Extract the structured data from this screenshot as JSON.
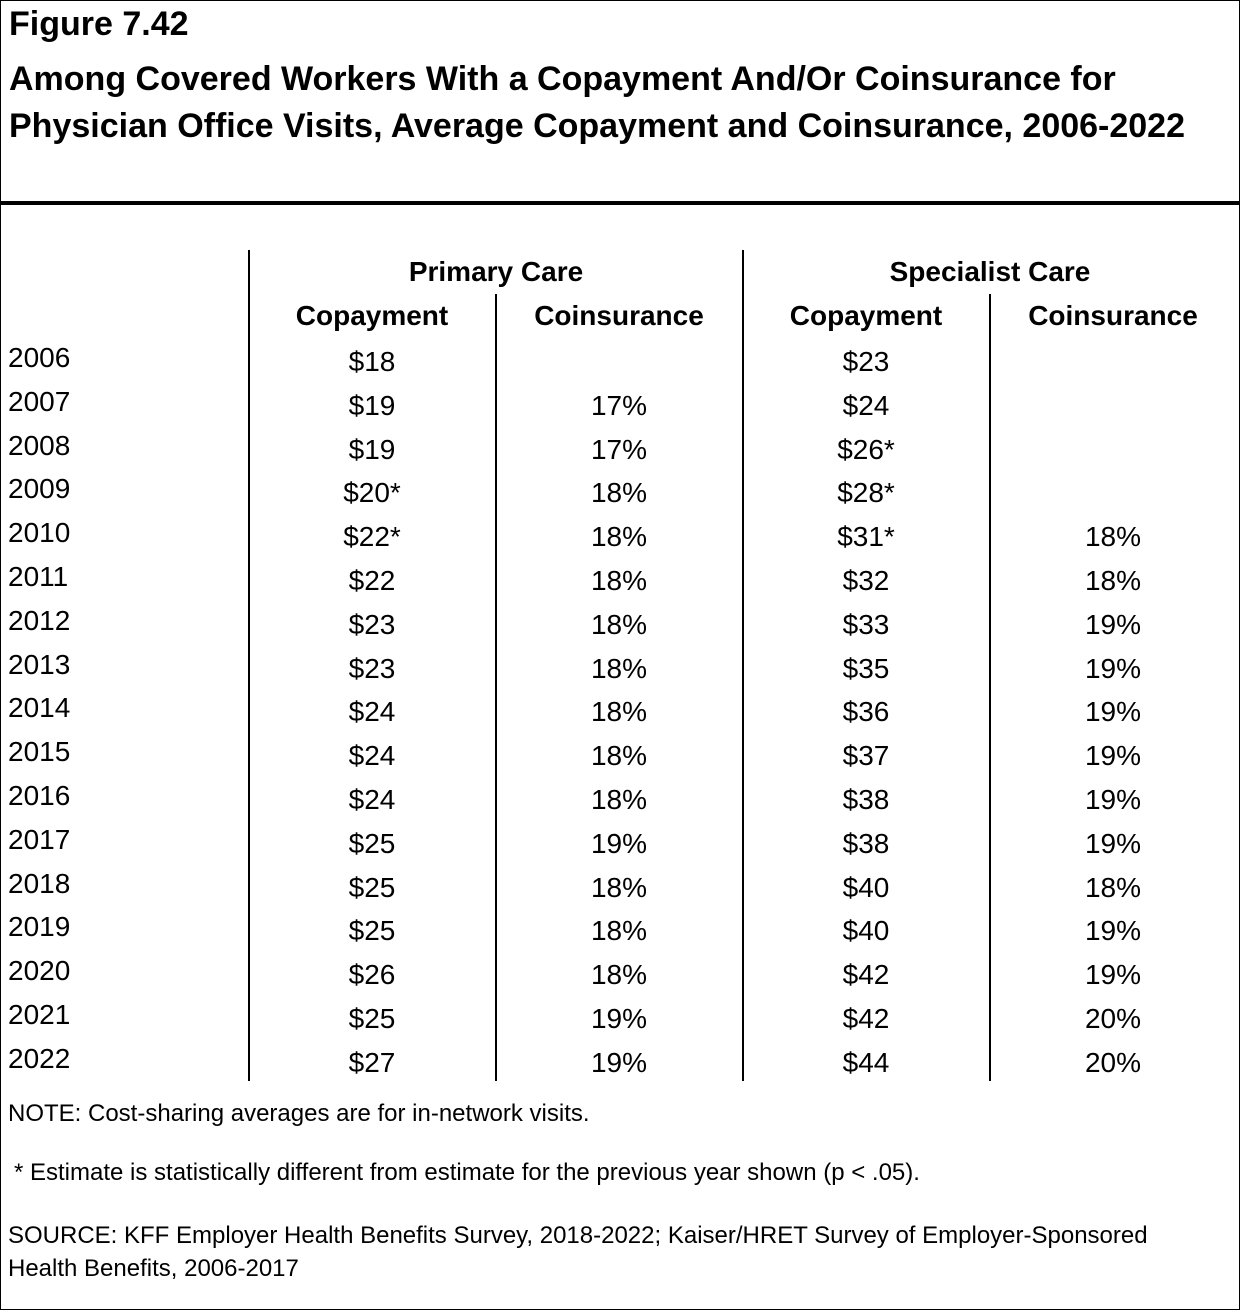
{
  "figure_number": "Figure 7.42",
  "title": "Among Covered Workers With a Copayment And/Or Coinsurance for Physician Office Visits, Average Copayment and Coinsurance, 2006-2022",
  "chart_data": {
    "type": "table",
    "groups": [
      "Primary Care",
      "Specialist Care"
    ],
    "columns": [
      "Copayment",
      "Coinsurance",
      "Copayment",
      "Coinsurance"
    ],
    "rows": [
      {
        "year": "2006",
        "values": [
          "$18",
          "",
          "$23",
          ""
        ]
      },
      {
        "year": "2007",
        "values": [
          "$19",
          "17%",
          "$24",
          ""
        ]
      },
      {
        "year": "2008",
        "values": [
          "$19",
          "17%",
          "$26*",
          ""
        ]
      },
      {
        "year": "2009",
        "values": [
          "$20*",
          "18%",
          "$28*",
          ""
        ]
      },
      {
        "year": "2010",
        "values": [
          "$22*",
          "18%",
          "$31*",
          "18%"
        ]
      },
      {
        "year": "2011",
        "values": [
          "$22",
          "18%",
          "$32",
          "18%"
        ]
      },
      {
        "year": "2012",
        "values": [
          "$23",
          "18%",
          "$33",
          "19%"
        ]
      },
      {
        "year": "2013",
        "values": [
          "$23",
          "18%",
          "$35",
          "19%"
        ]
      },
      {
        "year": "2014",
        "values": [
          "$24",
          "18%",
          "$36",
          "19%"
        ]
      },
      {
        "year": "2015",
        "values": [
          "$24",
          "18%",
          "$37",
          "19%"
        ]
      },
      {
        "year": "2016",
        "values": [
          "$24",
          "18%",
          "$38",
          "19%"
        ]
      },
      {
        "year": "2017",
        "values": [
          "$25",
          "19%",
          "$38",
          "19%"
        ]
      },
      {
        "year": "2018",
        "values": [
          "$25",
          "18%",
          "$40",
          "18%"
        ]
      },
      {
        "year": "2019",
        "values": [
          "$25",
          "18%",
          "$40",
          "19%"
        ]
      },
      {
        "year": "2020",
        "values": [
          "$26",
          "18%",
          "$42",
          "19%"
        ]
      },
      {
        "year": "2021",
        "values": [
          "$25",
          "19%",
          "$42",
          "20%"
        ]
      },
      {
        "year": "2022",
        "values": [
          "$27",
          "19%",
          "$44",
          "20%"
        ]
      }
    ]
  },
  "notes": {
    "note": "NOTE: Cost-sharing averages are for in-network visits.",
    "significance": "* Estimate is statistically different from estimate for the previous year shown (p < .05).",
    "source": "SOURCE: KFF Employer Health Benefits Survey, 2018-2022; Kaiser/HRET Survey of Employer-Sponsored Health Benefits, 2006-2017"
  }
}
